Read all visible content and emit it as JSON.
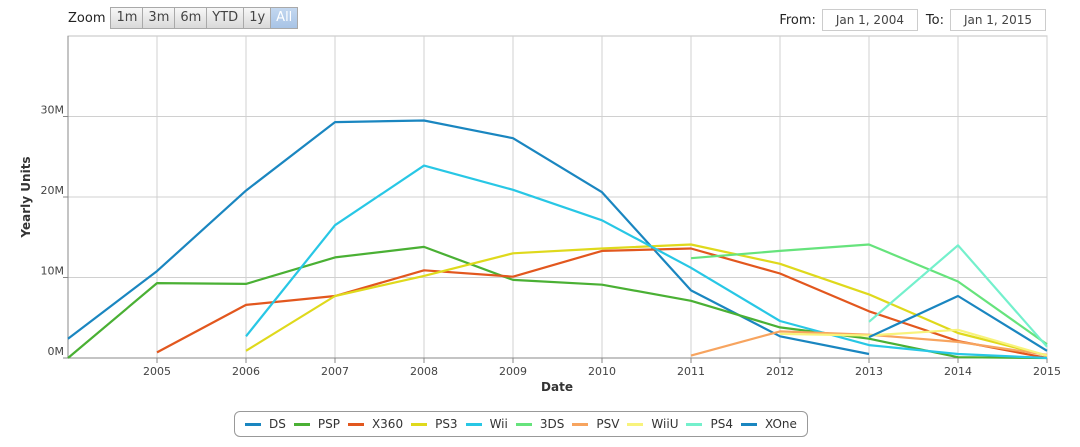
{
  "zoom": {
    "label": "Zoom",
    "buttons": [
      "1m",
      "3m",
      "6m",
      "YTD",
      "1y",
      "All"
    ],
    "active": "All"
  },
  "range": {
    "from_label": "From:",
    "from_value": "Jan 1, 2004",
    "to_label": "To:",
    "to_value": "Jan 1, 2015"
  },
  "chart_data": {
    "type": "line",
    "title": "",
    "xlabel": "Date",
    "ylabel": "Yearly Units",
    "xlim": [
      2004,
      2015
    ],
    "ylim": [
      0,
      40000000
    ],
    "x_ticks": [
      "2005",
      "2006",
      "2007",
      "2008",
      "2009",
      "2010",
      "2011",
      "2012",
      "2013",
      "2014",
      "2015"
    ],
    "y_ticks": [
      "0M",
      "10M",
      "20M",
      "30M"
    ],
    "y_tick_values": [
      0,
      10000000,
      20000000,
      30000000
    ],
    "grid": true,
    "legend_position": "bottom",
    "series": [
      {
        "name": "DS",
        "color": "#1a86c0",
        "x": [
          2004,
          2005,
          2006,
          2007,
          2008,
          2009,
          2010,
          2011,
          2012,
          2013
        ],
        "y": [
          2400000,
          10800000,
          20800000,
          29300000,
          29500000,
          27300000,
          20600000,
          8400000,
          2700000,
          500000
        ]
      },
      {
        "name": "PSP",
        "color": "#4ab034",
        "x": [
          2004,
          2005,
          2006,
          2007,
          2008,
          2009,
          2010,
          2011,
          2012,
          2013,
          2014,
          2015
        ],
        "y": [
          0,
          9300000,
          9200000,
          12500000,
          13800000,
          9700000,
          9100000,
          7100000,
          3800000,
          2400000,
          100000,
          0
        ]
      },
      {
        "name": "X360",
        "color": "#e2571e",
        "x": [
          2005,
          2006,
          2007,
          2008,
          2009,
          2010,
          2011,
          2012,
          2013,
          2014,
          2015
        ],
        "y": [
          700000,
          6600000,
          7700000,
          10900000,
          10100000,
          13300000,
          13600000,
          10500000,
          5800000,
          2100000,
          0
        ]
      },
      {
        "name": "PS3",
        "color": "#dfd91c",
        "x": [
          2006,
          2007,
          2008,
          2009,
          2010,
          2011,
          2012,
          2013,
          2014,
          2015
        ],
        "y": [
          900000,
          7700000,
          10200000,
          13000000,
          13600000,
          14100000,
          11700000,
          7900000,
          3100000,
          300000
        ]
      },
      {
        "name": "Wii",
        "color": "#28c7e5",
        "x": [
          2006,
          2007,
          2008,
          2009,
          2010,
          2011,
          2012,
          2013,
          2014,
          2015
        ],
        "y": [
          2700000,
          16500000,
          23900000,
          20900000,
          17100000,
          11200000,
          4600000,
          1600000,
          500000,
          0
        ]
      },
      {
        "name": "3DS",
        "color": "#66e37c",
        "x": [
          2011,
          2012,
          2013,
          2014,
          2015
        ],
        "y": [
          12400000,
          13300000,
          14100000,
          9500000,
          1700000
        ]
      },
      {
        "name": "PSV",
        "color": "#f7a45f",
        "x": [
          2011,
          2012,
          2013,
          2014,
          2015
        ],
        "y": [
          300000,
          3300000,
          2900000,
          2000000,
          400000
        ]
      },
      {
        "name": "WiiU",
        "color": "#f8f37c",
        "x": [
          2012,
          2013,
          2014,
          2015
        ],
        "y": [
          3000000,
          2800000,
          3500000,
          300000
        ]
      },
      {
        "name": "PS4",
        "color": "#74f0cc",
        "x": [
          2013,
          2014,
          2015
        ],
        "y": [
          4500000,
          14000000,
          1400000
        ]
      },
      {
        "name": "XOne",
        "color": "#1a86c0",
        "x": [
          2013,
          2014,
          2015
        ],
        "y": [
          2600000,
          7700000,
          900000
        ]
      }
    ]
  }
}
